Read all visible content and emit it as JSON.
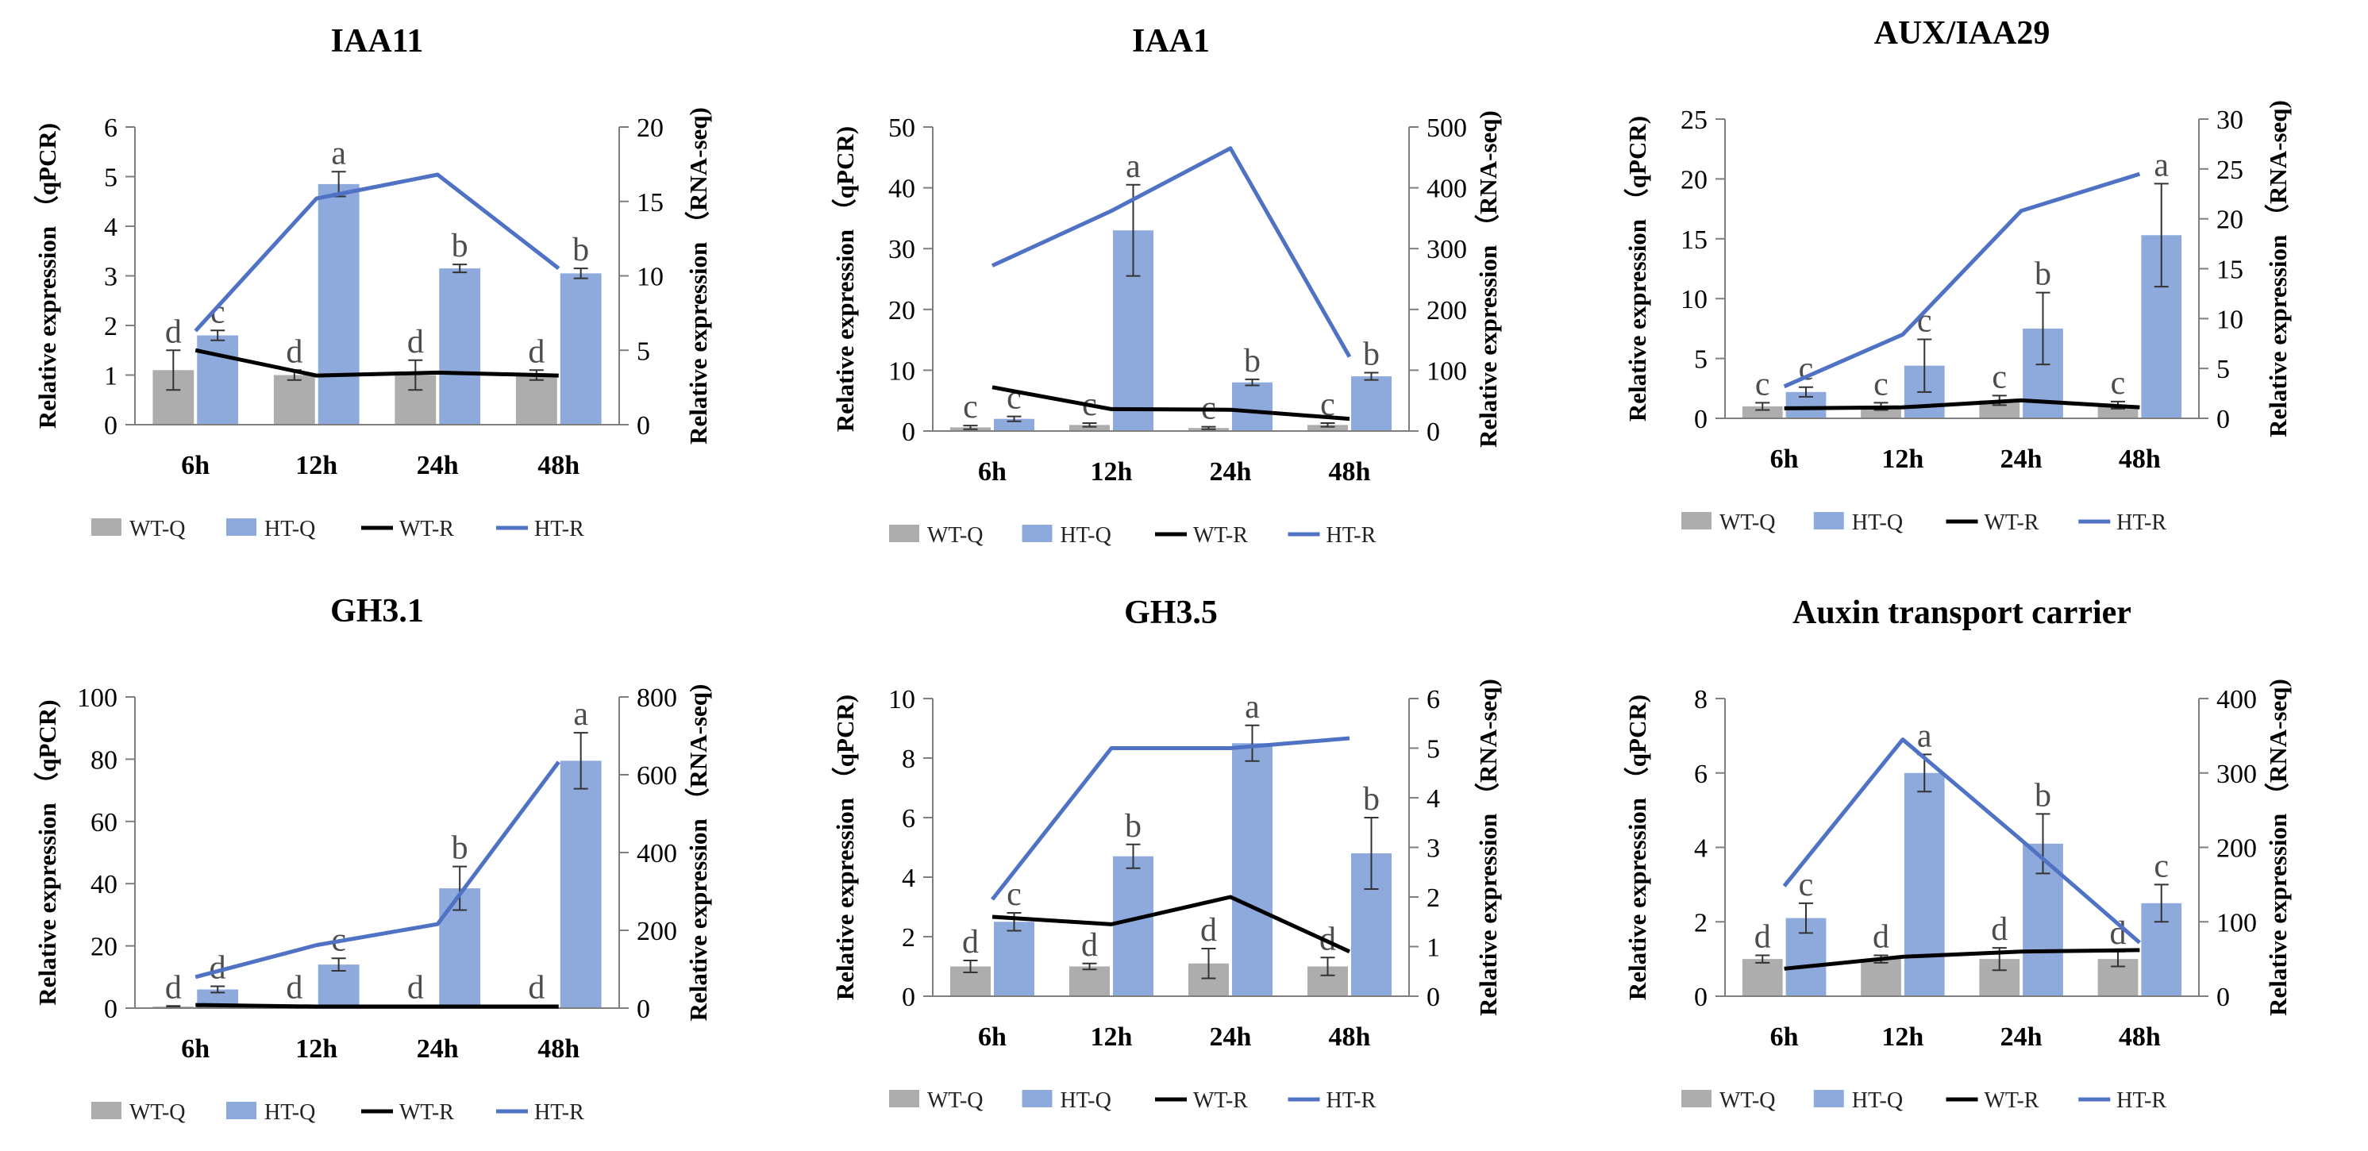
{
  "chart_data": [
    {
      "type": "bar+line",
      "title": "IAA11",
      "categories": [
        "6h",
        "12h",
        "24h",
        "48h"
      ],
      "ylabel_left": "Relative expression （qPCR)",
      "ylabel_right": "Relative expression （RNA-seq)",
      "ylim_left": [
        0,
        6
      ],
      "yticks_left": [
        0,
        1,
        2,
        3,
        4,
        5,
        6
      ],
      "ylim_right": [
        0,
        20
      ],
      "yticks_right": [
        0,
        5,
        10,
        15,
        20
      ],
      "bars": [
        {
          "name": "WT-Q",
          "values": [
            1.1,
            1.0,
            1.0,
            1.0
          ],
          "errors": [
            0.4,
            0.1,
            0.3,
            0.1
          ],
          "labels": [
            "d",
            "d",
            "d",
            "d"
          ]
        },
        {
          "name": "HT-Q",
          "values": [
            1.8,
            4.85,
            3.15,
            3.05
          ],
          "errors": [
            0.1,
            0.25,
            0.08,
            0.1
          ],
          "labels": [
            "c",
            "a",
            "b",
            "b"
          ]
        }
      ],
      "lines": [
        {
          "name": "WT-R",
          "values": [
            5.0,
            3.3,
            3.5,
            3.3
          ]
        },
        {
          "name": "HT-R",
          "values": [
            6.3,
            15.2,
            16.8,
            10.5
          ]
        }
      ],
      "legend": [
        "WT-Q",
        "HT-Q",
        "WT-R",
        "HT-R"
      ]
    },
    {
      "type": "bar+line",
      "title": "IAA1",
      "categories": [
        "6h",
        "12h",
        "24h",
        "48h"
      ],
      "ylabel_left": "Relative expression （qPCR)",
      "ylabel_right": "Relative expression （RNA-seq)",
      "ylim_left": [
        0,
        50
      ],
      "yticks_left": [
        0,
        10,
        20,
        30,
        40,
        50
      ],
      "ylim_right": [
        0,
        500
      ],
      "yticks_right": [
        0,
        100,
        200,
        300,
        400,
        500
      ],
      "bars": [
        {
          "name": "WT-Q",
          "values": [
            0.6,
            1.0,
            0.5,
            1.0
          ],
          "errors": [
            0.3,
            0.3,
            0.2,
            0.3
          ],
          "labels": [
            "c",
            "c",
            "c",
            "c"
          ]
        },
        {
          "name": "HT-Q",
          "values": [
            2.0,
            33.0,
            8.0,
            9.0
          ],
          "errors": [
            0.4,
            7.5,
            0.5,
            0.6
          ],
          "labels": [
            "c",
            "a",
            "b",
            "b"
          ]
        }
      ],
      "lines": [
        {
          "name": "WT-R",
          "values": [
            72,
            36,
            35,
            20
          ]
        },
        {
          "name": "HT-R",
          "values": [
            272,
            362,
            465,
            122
          ]
        }
      ],
      "legend": [
        "WT-Q",
        "HT-Q",
        "WT-R",
        "HT-R"
      ]
    },
    {
      "type": "bar+line",
      "title": "AUX/IAA29",
      "categories": [
        "6h",
        "12h",
        "24h",
        "48h"
      ],
      "ylabel_left": "Relative expression （qPCR)",
      "ylabel_right": "Relative expression （RNA-seq)",
      "ylim_left": [
        0,
        25
      ],
      "yticks_left": [
        0,
        5,
        10,
        15,
        20,
        25
      ],
      "ylim_right": [
        0,
        30
      ],
      "yticks_right": [
        0,
        5,
        10,
        15,
        20,
        25,
        30
      ],
      "bars": [
        {
          "name": "WT-Q",
          "values": [
            1.0,
            1.0,
            1.5,
            1.1
          ],
          "errors": [
            0.3,
            0.3,
            0.4,
            0.3
          ],
          "labels": [
            "c",
            "c",
            "c",
            "c"
          ]
        },
        {
          "name": "HT-Q",
          "values": [
            2.2,
            4.4,
            7.5,
            15.3
          ],
          "errors": [
            0.4,
            2.2,
            3.0,
            4.3
          ],
          "labels": [
            "c",
            "c",
            "b",
            "a"
          ]
        }
      ],
      "lines": [
        {
          "name": "WT-R",
          "values": [
            1.0,
            1.1,
            1.8,
            1.1
          ]
        },
        {
          "name": "HT-R",
          "values": [
            3.2,
            8.4,
            20.8,
            24.5
          ]
        }
      ],
      "legend": [
        "WT-Q",
        "HT-Q",
        "WT-R",
        "HT-R"
      ]
    },
    {
      "type": "bar+line",
      "title": "GH3.1",
      "categories": [
        "6h",
        "12h",
        "24h",
        "48h"
      ],
      "ylabel_left": "Relative expression （qPCR)",
      "ylabel_right": "Relative expression （RNA-seq)",
      "ylim_left": [
        0,
        100
      ],
      "yticks_left": [
        0,
        20,
        40,
        60,
        80,
        100
      ],
      "ylim_right": [
        0,
        800
      ],
      "yticks_right": [
        0,
        200,
        400,
        600,
        800
      ],
      "bars": [
        {
          "name": "WT-Q",
          "values": [
            0.5,
            0.5,
            0.5,
            0.5
          ],
          "errors": [
            0.2,
            0.2,
            0.2,
            0.2
          ],
          "labels": [
            "d",
            "d",
            "d",
            "d"
          ]
        },
        {
          "name": "HT-Q",
          "values": [
            6.0,
            14.0,
            38.5,
            79.5
          ],
          "errors": [
            1.0,
            2.0,
            7.0,
            9.0
          ],
          "labels": [
            "d",
            "c",
            "b",
            "a"
          ]
        }
      ],
      "lines": [
        {
          "name": "WT-R",
          "values": [
            8,
            4,
            4,
            4
          ]
        },
        {
          "name": "HT-R",
          "values": [
            80,
            162,
            216,
            633
          ]
        }
      ],
      "legend": [
        "WT-Q",
        "HT-Q",
        "WT-R",
        "HT-R"
      ]
    },
    {
      "type": "bar+line",
      "title": "GH3.5",
      "categories": [
        "6h",
        "12h",
        "24h",
        "48h"
      ],
      "ylabel_left": "Relative expression （qPCR)",
      "ylabel_right": "Relative expression （RNA-seq)",
      "ylim_left": [
        0,
        10
      ],
      "yticks_left": [
        0,
        2,
        4,
        6,
        8,
        10
      ],
      "ylim_right": [
        0,
        6
      ],
      "yticks_right": [
        0,
        1,
        2,
        3,
        4,
        5,
        6
      ],
      "bars": [
        {
          "name": "WT-Q",
          "values": [
            1.0,
            1.0,
            1.1,
            1.0
          ],
          "errors": [
            0.2,
            0.1,
            0.5,
            0.3
          ],
          "labels": [
            "d",
            "d",
            "d",
            "d"
          ]
        },
        {
          "name": "HT-Q",
          "values": [
            2.5,
            4.7,
            8.5,
            4.8
          ],
          "errors": [
            0.3,
            0.4,
            0.6,
            1.2
          ],
          "labels": [
            "c",
            "b",
            "a",
            "b"
          ]
        }
      ],
      "lines": [
        {
          "name": "WT-R",
          "values": [
            1.6,
            1.45,
            2.0,
            0.9
          ]
        },
        {
          "name": "HT-R",
          "values": [
            1.95,
            5.0,
            5.0,
            5.2
          ]
        }
      ],
      "legend": [
        "WT-Q",
        "HT-Q",
        "WT-R",
        "HT-R"
      ]
    },
    {
      "type": "bar+line",
      "title": "Auxin transport carrier",
      "categories": [
        "6h",
        "12h",
        "24h",
        "48h"
      ],
      "ylabel_left": "Relative expression （qPCR)",
      "ylabel_right": "Relative expression （RNA-seq)",
      "ylim_left": [
        0,
        8
      ],
      "yticks_left": [
        0,
        2,
        4,
        6,
        8
      ],
      "ylim_right": [
        0,
        400
      ],
      "yticks_right": [
        0,
        100,
        200,
        300,
        400
      ],
      "bars": [
        {
          "name": "WT-Q",
          "values": [
            1.0,
            1.0,
            1.0,
            1.0
          ],
          "errors": [
            0.1,
            0.1,
            0.3,
            0.2
          ],
          "labels": [
            "d",
            "d",
            "d",
            "d"
          ]
        },
        {
          "name": "HT-Q",
          "values": [
            2.1,
            6.0,
            4.1,
            2.5
          ],
          "errors": [
            0.4,
            0.5,
            0.8,
            0.5
          ],
          "labels": [
            "c",
            "a",
            "b",
            "c"
          ]
        }
      ],
      "lines": [
        {
          "name": "WT-R",
          "values": [
            37,
            53,
            60,
            62
          ]
        },
        {
          "name": "HT-R",
          "values": [
            148,
            345,
            210,
            72
          ]
        }
      ],
      "legend": [
        "WT-Q",
        "HT-Q",
        "WT-R",
        "HT-R"
      ]
    }
  ],
  "colors": {
    "wt_bar": "#adadad",
    "ht_bar": "#8eaadc",
    "wt_line": "#000000",
    "ht_line": "#4f72c4",
    "axis": "#7f7f7f",
    "sig_label": "#4d4d4d"
  }
}
